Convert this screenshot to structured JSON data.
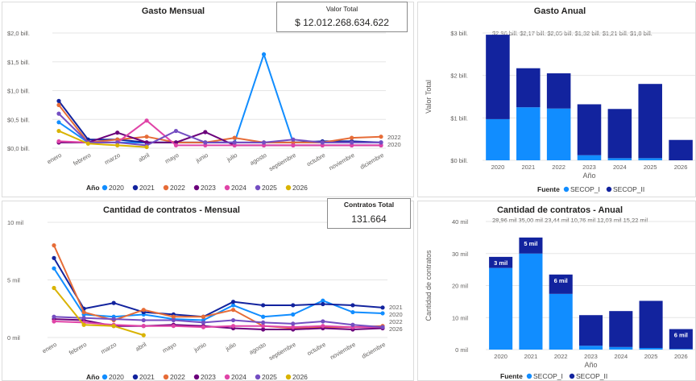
{
  "months": [
    "enero",
    "febrero",
    "marzo",
    "abril",
    "mayo",
    "junio",
    "julio",
    "agosto",
    "septiembre",
    "octubre",
    "noviembre",
    "diciembre"
  ],
  "colors": {
    "2020": "#118DFF",
    "2021": "#12239E",
    "2022": "#E66C37",
    "2023": "#6B007B",
    "2024": "#E044A7",
    "2025": "#744EC2",
    "2026": "#D9B300",
    "SECOP_I": "#118DFF",
    "SECOP_II": "#12239E"
  },
  "legend_years": [
    "2020",
    "2021",
    "2022",
    "2023",
    "2024",
    "2025",
    "2026"
  ],
  "legend_title_year": "Año",
  "legend_title_source": "Fuente",
  "sources": [
    "SECOP_I",
    "SECOP_II"
  ],
  "card_value": {
    "label": "Valor Total",
    "value": "$ 12.012.268.634.622"
  },
  "card_contracts": {
    "label": "Contratos Total",
    "value": "131.664"
  },
  "chart_data": [
    {
      "type": "line",
      "title": "Gasto Mensual",
      "unit": "bill.",
      "ylim": [
        0,
        2
      ],
      "yticks": [
        "$0,0 bill.",
        "$0,5 bill.",
        "$1,0 bill.",
        "$1,5 bill.",
        "$2,0 bill."
      ],
      "end_labels": [
        "2022",
        "2020"
      ],
      "series": [
        {
          "name": "2020",
          "values": [
            0.45,
            0.1,
            0.1,
            0.1,
            0.1,
            0.1,
            0.1,
            1.63,
            0.1,
            0.1,
            0.1,
            0.1
          ]
        },
        {
          "name": "2021",
          "values": [
            0.82,
            0.15,
            0.15,
            0.1,
            0.1,
            0.1,
            0.1,
            0.1,
            0.1,
            0.12,
            0.12,
            0.1
          ]
        },
        {
          "name": "2022",
          "values": [
            0.75,
            0.1,
            0.15,
            0.2,
            0.1,
            0.1,
            0.18,
            0.1,
            0.1,
            0.1,
            0.18,
            0.2
          ]
        },
        {
          "name": "2023",
          "values": [
            0.1,
            0.1,
            0.27,
            0.1,
            0.1,
            0.28,
            0.05,
            0.05,
            0.05,
            0.05,
            0.05,
            0.05
          ]
        },
        {
          "name": "2024",
          "values": [
            0.12,
            0.1,
            0.1,
            0.48,
            0.05,
            0.05,
            0.05,
            0.05,
            0.05,
            0.05,
            0.05,
            0.05
          ]
        },
        {
          "name": "2025",
          "values": [
            0.6,
            0.1,
            0.1,
            0.05,
            0.3,
            0.1,
            0.1,
            0.1,
            0.15,
            0.1,
            0.1,
            0.1
          ]
        },
        {
          "name": "2026",
          "values": [
            0.3,
            0.08,
            0.05,
            0.02
          ]
        }
      ]
    },
    {
      "type": "bar",
      "title": "Gasto Anual",
      "xlabel": "Año",
      "ylabel": "Valor Total",
      "ylim": [
        0,
        3
      ],
      "yticks": [
        "$0 bill.",
        "$1 bill.",
        "$2 bill.",
        "$3 bill."
      ],
      "categories": [
        "2020",
        "2021",
        "2022",
        "2023",
        "2024",
        "2025",
        "2026"
      ],
      "top_labels": "$2,96 bill.  $2,17 bill. $2,05 bill.  $1,32 bill. $1,21 bill.  $1,8 bill.",
      "series": [
        {
          "name": "SECOP_I",
          "values": [
            0.97,
            1.25,
            1.22,
            0.12,
            0.05,
            0.05,
            0.0
          ]
        },
        {
          "name": "SECOP_II",
          "values": [
            1.99,
            0.92,
            0.83,
            1.2,
            1.16,
            1.75,
            0.48
          ]
        }
      ]
    },
    {
      "type": "line",
      "title": "Cantidad de contratos - Mensual",
      "unit": "mil",
      "ylim": [
        0,
        10
      ],
      "yticks": [
        "0 mil",
        "5 mil",
        "10 mil"
      ],
      "end_labels": [
        "2021",
        "2020",
        "2022",
        "2026"
      ],
      "series": [
        {
          "name": "2020",
          "values": [
            6.0,
            2.0,
            1.8,
            2.0,
            1.6,
            1.5,
            2.8,
            1.8,
            2.0,
            3.2,
            2.2,
            2.1
          ]
        },
        {
          "name": "2021",
          "values": [
            6.9,
            2.5,
            3.0,
            2.2,
            2.0,
            1.8,
            3.1,
            2.8,
            2.8,
            2.9,
            2.8,
            2.6
          ]
        },
        {
          "name": "2022",
          "values": [
            8.0,
            2.2,
            1.5,
            2.4,
            1.8,
            1.8,
            2.4,
            1.0,
            0.8,
            0.9,
            0.9,
            1.0
          ]
        },
        {
          "name": "2023",
          "values": [
            1.6,
            1.5,
            1.0,
            1.0,
            1.1,
            1.0,
            0.8,
            0.7,
            0.7,
            0.8,
            0.7,
            0.8
          ]
        },
        {
          "name": "2024",
          "values": [
            1.4,
            1.3,
            1.1,
            1.0,
            1.0,
            0.9,
            1.0,
            1.0,
            0.9,
            1.0,
            0.9,
            0.9
          ]
        },
        {
          "name": "2025",
          "values": [
            1.8,
            1.7,
            1.6,
            1.5,
            1.5,
            1.3,
            1.5,
            1.3,
            1.2,
            1.4,
            1.1,
            0.9
          ]
        },
        {
          "name": "2026",
          "values": [
            4.3,
            1.1,
            1.0,
            0.2
          ]
        }
      ]
    },
    {
      "type": "bar",
      "title": "Cantidad de contratos - Anual",
      "xlabel": "Año",
      "ylabel": "Cantidad de contratos",
      "ylim": [
        0,
        40
      ],
      "yticks": [
        "0 mil",
        "10 mil",
        "20 mil",
        "30 mil",
        "40 mil"
      ],
      "categories": [
        "2020",
        "2021",
        "2022",
        "2023",
        "2024",
        "2025",
        "2026"
      ],
      "top_labels": "28,96 mil 35,00 mil  23,44 mil 10,76 mil  12,03 mil   15,22 mil",
      "series": [
        {
          "name": "SECOP_I",
          "values": [
            25.5,
            30.0,
            17.4,
            1.2,
            0.8,
            0.5,
            0.2
          ]
        },
        {
          "name": "SECOP_II",
          "values": [
            3.46,
            5.0,
            6.04,
            9.56,
            11.23,
            14.72,
            6.2
          ]
        }
      ],
      "segment_labels": [
        "3 mil",
        "5 mil",
        "6 mil",
        "6 mil"
      ]
    }
  ]
}
